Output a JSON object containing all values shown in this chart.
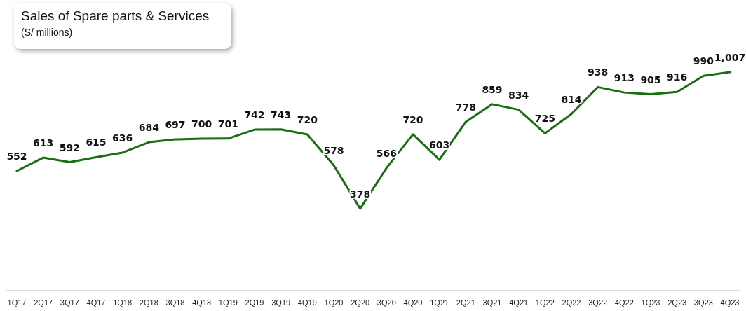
{
  "chart_data": {
    "type": "line",
    "title": "Sales of Spare parts & Services",
    "subtitle": "(S/ millions)",
    "categories": [
      "1Q17",
      "2Q17",
      "3Q17",
      "4Q17",
      "1Q18",
      "2Q18",
      "3Q18",
      "4Q18",
      "1Q19",
      "2Q19",
      "3Q19",
      "4Q19",
      "1Q20",
      "2Q20",
      "3Q20",
      "4Q20",
      "1Q21",
      "2Q21",
      "3Q21",
      "4Q21",
      "1Q22",
      "2Q22",
      "3Q22",
      "4Q22",
      "1Q23",
      "2Q23",
      "3Q23",
      "4Q23"
    ],
    "series": [
      {
        "color": "#1a6e12",
        "values": [
          552,
          613,
          592,
          615,
          636,
          684,
          697,
          700,
          701,
          742,
          743,
          720,
          578,
          378,
          566,
          720,
          603,
          778,
          859,
          834,
          725,
          814,
          938,
          913,
          905,
          916,
          990,
          1007
        ],
        "value_labels": [
          "552",
          "613",
          "592",
          "615",
          "636",
          "684",
          "697",
          "700",
          "701",
          "742",
          "743",
          "720",
          "578",
          "378",
          "566",
          "720",
          "603",
          "778",
          "859",
          "834",
          "725",
          "814",
          "938",
          "913",
          "905",
          "916",
          "990",
          "1,007"
        ]
      }
    ],
    "grid": false
  }
}
